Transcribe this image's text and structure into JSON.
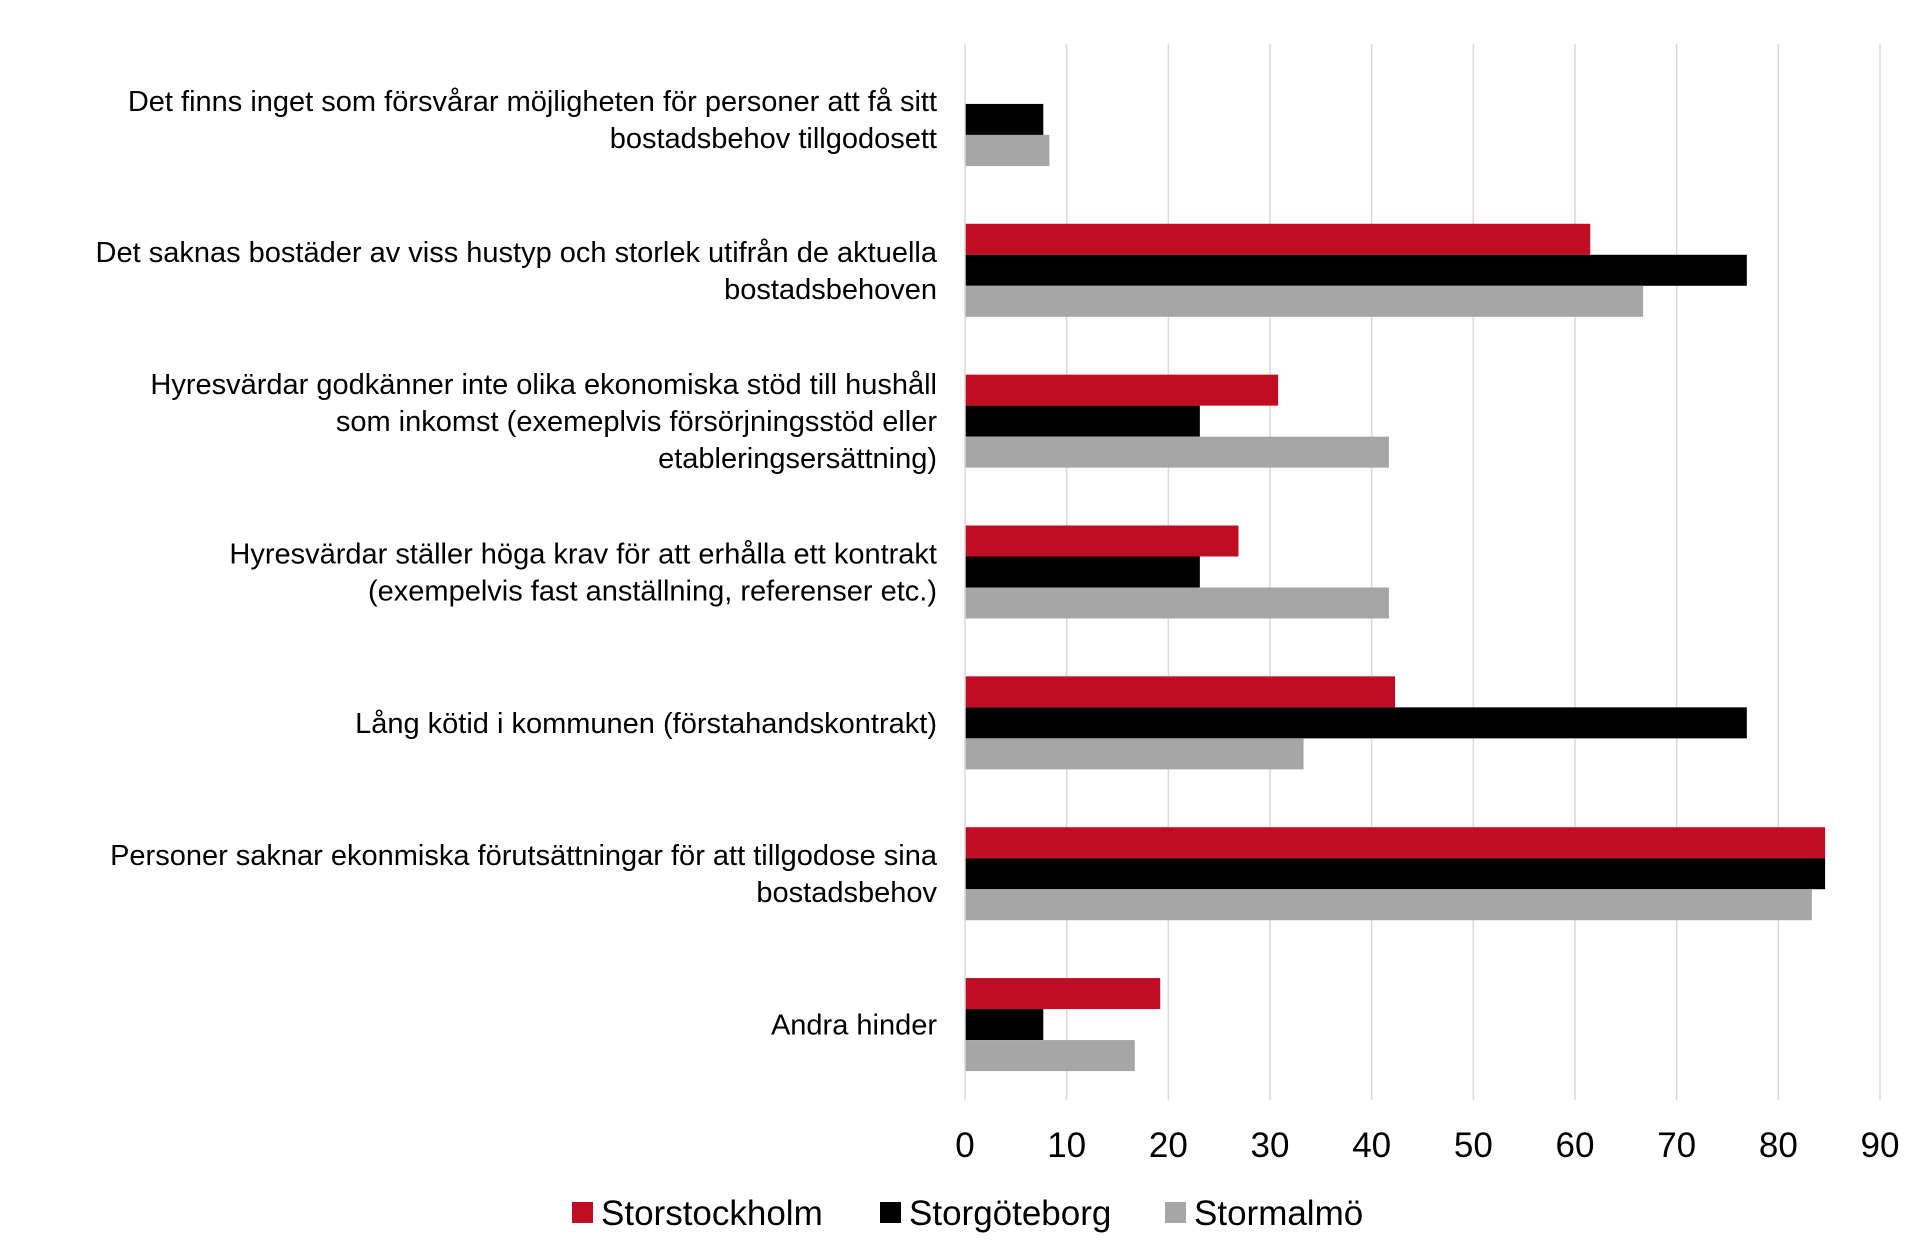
{
  "chart_data": {
    "type": "bar",
    "orientation": "horizontal",
    "categories": [
      [
        "Det finns inget som försvårar möjligheten för personer att få sitt",
        "bostadsbehov tillgodosett"
      ],
      [
        "Det saknas bostäder av viss hustyp och storlek utifrån de aktuella",
        "bostadsbehoven"
      ],
      [
        "Hyresvärdar godkänner inte olika ekonomiska stöd till hushåll",
        "som inkomst (exemeplvis försörjningsstöd eller",
        "etableringsersättning)"
      ],
      [
        "Hyresvärdar ställer höga krav för att erhålla ett kontrakt",
        "(exempelvis fast anställning, referenser etc.)"
      ],
      [
        "Lång kötid i kommunen (förstahandskontrakt)"
      ],
      [
        "Personer saknar ekonmiska förutsättningar för att tillgodose sina",
        "bostadsbehov"
      ],
      [
        "Andra hinder"
      ]
    ],
    "series": [
      {
        "name": "Storstockholm",
        "color": "#c00d23",
        "values": [
          0,
          61.5,
          30.8,
          26.9,
          42.3,
          84.6,
          19.2
        ]
      },
      {
        "name": "Storgöteborg",
        "color": "#000000",
        "values": [
          7.7,
          76.9,
          23.1,
          23.1,
          76.9,
          84.6,
          7.7
        ]
      },
      {
        "name": "Stormalmö",
        "color": "#a6a6a6",
        "values": [
          8.3,
          66.7,
          41.7,
          41.7,
          33.3,
          83.3,
          16.7
        ]
      }
    ],
    "xlim": [
      0,
      90
    ],
    "xticks": [
      "0",
      "10",
      "20",
      "30",
      "40",
      "50",
      "60",
      "70",
      "80",
      "90"
    ],
    "grid": true,
    "legend_position": "bottom",
    "title": "",
    "xlabel": "",
    "ylabel": ""
  }
}
